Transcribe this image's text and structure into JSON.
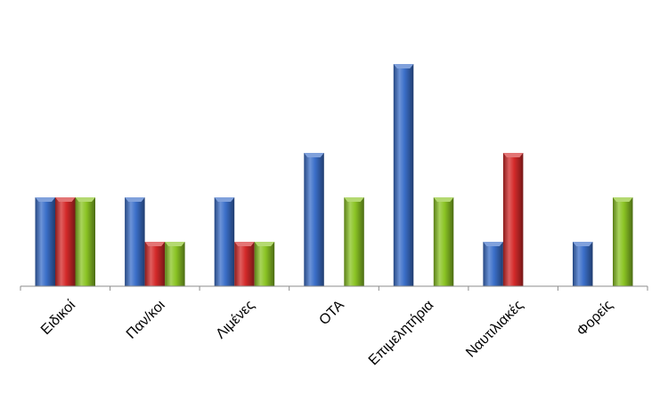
{
  "chart_data": {
    "type": "bar",
    "categories": [
      "Ειδικοί",
      "Παν/κοι",
      "Λιμένες",
      "ΟΤΑ",
      "Επιμελητήρια",
      "Ναυτιλιακές",
      "Φορείς"
    ],
    "series": [
      {
        "color": "#3b6fc9",
        "values": [
          2,
          2,
          2,
          3,
          5,
          1,
          1
        ]
      },
      {
        "color": "#d42a2a",
        "values": [
          2,
          1,
          1,
          0,
          0,
          3,
          0
        ]
      },
      {
        "color": "#8bc424",
        "values": [
          2,
          1,
          1,
          2,
          2,
          0,
          2
        ]
      }
    ],
    "ylim": [
      0,
      5.1
    ],
    "grid": false,
    "legend": "none"
  }
}
